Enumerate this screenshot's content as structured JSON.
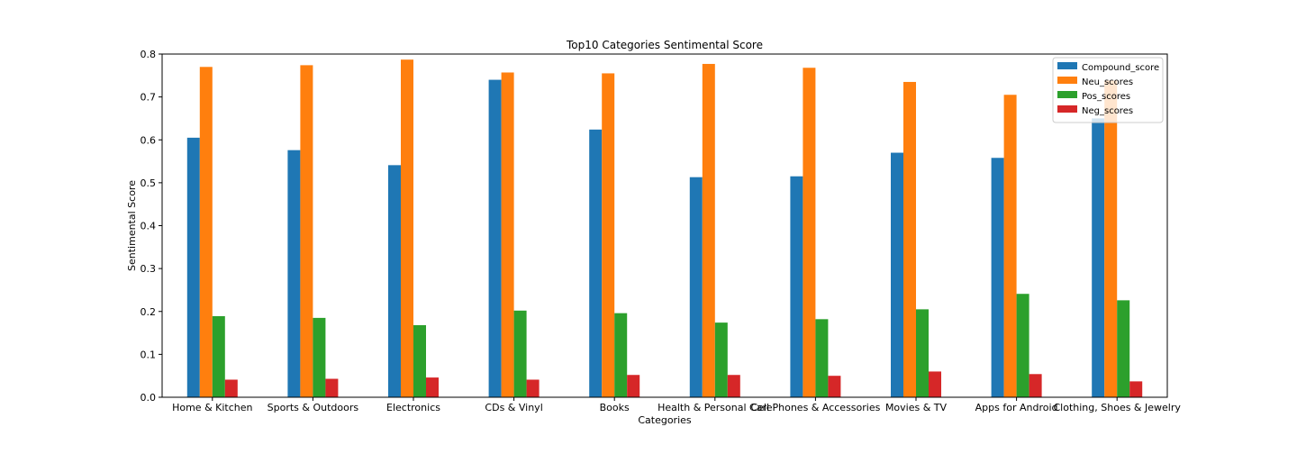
{
  "chart_data": {
    "type": "bar",
    "title": "Top10 Categories Sentimental Score",
    "xlabel": "Categories",
    "ylabel": "Sentimental Score",
    "ylim": [
      0,
      0.8
    ],
    "yticks": [
      "0.0",
      "0.1",
      "0.2",
      "0.3",
      "0.4",
      "0.5",
      "0.6",
      "0.7",
      "0.8"
    ],
    "legend_position": "top-right",
    "grid": false,
    "categories": [
      "Home & Kitchen",
      "Sports & Outdoors",
      "Electronics",
      "CDs & Vinyl",
      "Books",
      "Health & Personal Care",
      "Cell Phones & Accessories",
      "Movies & TV",
      "Apps for Android",
      "Clothing, Shoes & Jewelry"
    ],
    "series": [
      {
        "name": "Compound_score",
        "color": "#1f77b4",
        "values": [
          0.605,
          0.576,
          0.541,
          0.74,
          0.624,
          0.513,
          0.515,
          0.57,
          0.558,
          0.65
        ]
      },
      {
        "name": "Neu_scores",
        "color": "#ff7f0e",
        "values": [
          0.77,
          0.774,
          0.787,
          0.757,
          0.755,
          0.777,
          0.768,
          0.735,
          0.705,
          0.738
        ]
      },
      {
        "name": "Pos_scores",
        "color": "#2ca02c",
        "values": [
          0.189,
          0.185,
          0.168,
          0.202,
          0.196,
          0.174,
          0.182,
          0.205,
          0.241,
          0.226
        ]
      },
      {
        "name": "Neg_scores",
        "color": "#d62728",
        "values": [
          0.041,
          0.043,
          0.046,
          0.041,
          0.052,
          0.052,
          0.05,
          0.06,
          0.054,
          0.037
        ]
      }
    ]
  }
}
